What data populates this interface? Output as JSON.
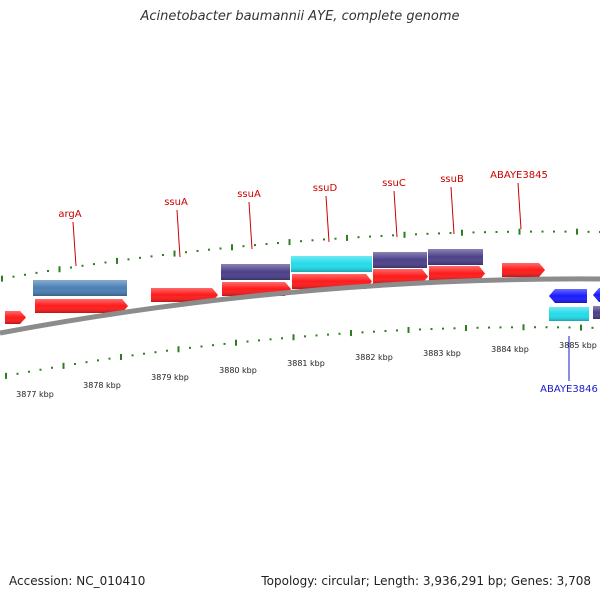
{
  "title": "Acinetobacter baumannii AYE, complete genome",
  "footer": {
    "accession": "Accession: NC_010410",
    "summary": "Topology: circular; Length: 3,936,291 bp; Genes: 3,708"
  },
  "axis": {
    "tick_labels": [
      "3877 kbp",
      "3878 kbp",
      "3879 kbp",
      "3880 kbp",
      "3881 kbp",
      "3882 kbp",
      "3883 kbp",
      "3884 kbp",
      "3885 kbp"
    ]
  },
  "colors": {
    "backbone": "#8c8c8c",
    "tick_green": "#2e7d1e",
    "cds_red": "#ff1a1a",
    "gene_purple": "#4b3f8a",
    "gene_steelblue": "#4a7fb5",
    "gene_cyan": "#22dcea",
    "gene_blue": "#1a1aff",
    "label_red": "#cc0000",
    "label_blue": "#1a1acc"
  },
  "genes": {
    "labels_forward": [
      "argA",
      "ssuA",
      "ssuA",
      "ssuD",
      "ssuC",
      "ssuB",
      "ABAYE3845"
    ],
    "labels_reverse": [
      "ABAYE3846"
    ]
  }
}
